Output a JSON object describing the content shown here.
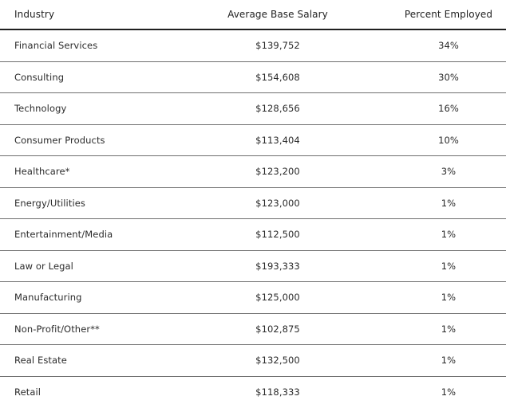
{
  "table": {
    "headers": [
      "Industry",
      "Average Base Salary",
      "Percent Employed"
    ],
    "rows": [
      [
        "Financial Services",
        "$139,752",
        "34%"
      ],
      [
        "Consulting",
        "$154,608",
        "30%"
      ],
      [
        "Technology",
        "$128,656",
        "16%"
      ],
      [
        "Consumer Products",
        "$113,404",
        "10%"
      ],
      [
        "Healthcare*",
        "$123,200",
        "3%"
      ],
      [
        "Energy/Utilities",
        "$123,000",
        "1%"
      ],
      [
        "Entertainment/Media",
        "$112,500",
        "1%"
      ],
      [
        "Law or Legal",
        "$193,333",
        "1%"
      ],
      [
        "Manufacturing",
        "$125,000",
        "1%"
      ],
      [
        "Non-Profit/Other**",
        "$102,875",
        "1%"
      ],
      [
        "Real Estate",
        "$132,500",
        "1%"
      ],
      [
        "Retail",
        "$118,333",
        "1%"
      ]
    ]
  }
}
